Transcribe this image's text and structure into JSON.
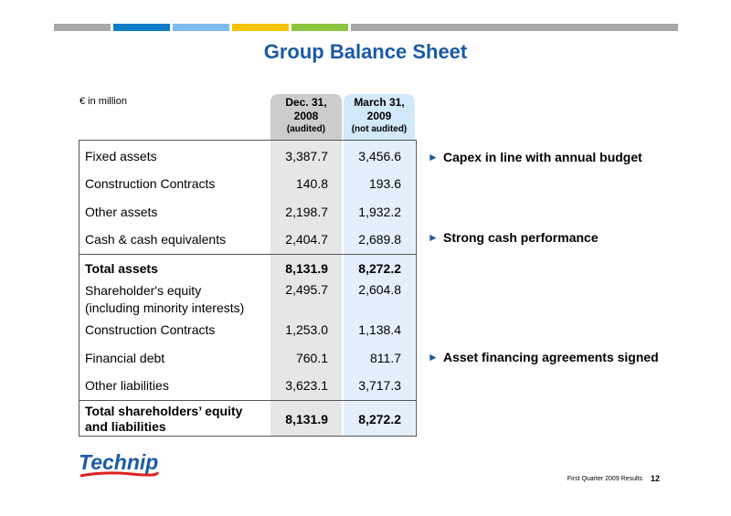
{
  "header": {
    "bar_colors": [
      "#a8a8a8",
      "#0f7bc5",
      "#7cbcee",
      "#f5c400",
      "#8cc63f",
      "#a8a8a8"
    ],
    "title": "Group Balance Sheet"
  },
  "table": {
    "unit_label": "€ in million",
    "col_dec": {
      "line1": "Dec. 31,",
      "line2": "2008",
      "note": "(audited)"
    },
    "col_mar": {
      "line1": "March 31,",
      "line2": "2009",
      "note": "(not audited)"
    },
    "rows": [
      {
        "label": "Fixed assets",
        "label2": "",
        "dec": "3,387.7",
        "mar": "3,456.6"
      },
      {
        "label": "Construction Contracts",
        "label2": "",
        "dec": "140.8",
        "mar": "193.6"
      },
      {
        "label": "Other assets",
        "label2": "",
        "dec": "2,198.7",
        "mar": "1,932.2"
      },
      {
        "label": "Cash & cash equivalents",
        "label2": "",
        "dec": "2,404.7",
        "mar": "2,689.8"
      },
      {
        "label": "Total assets",
        "label2": "",
        "dec": "8,131.9",
        "mar": "8,272.2"
      },
      {
        "label": "Shareholder's equity",
        "label2": "(including minority interests)",
        "dec": "2,495.7",
        "mar": "2,604.8"
      },
      {
        "label": "Construction Contracts",
        "label2": "",
        "dec": "1,253.0",
        "mar": "1,138.4"
      },
      {
        "label": "Financial debt",
        "label2": "",
        "dec": "760.1",
        "mar": "811.7"
      },
      {
        "label": "Other liabilities",
        "label2": "",
        "dec": "3,623.1",
        "mar": "3,717.3"
      },
      {
        "label": "Total shareholders’ equity",
        "label2": "and liabilities",
        "dec": "8,131.9",
        "mar": "8,272.2"
      }
    ]
  },
  "bullets": [
    {
      "marker": "►",
      "text": "Capex in line with annual budget"
    },
    {
      "marker": "►",
      "text": "Strong cash performance"
    },
    {
      "marker": "►",
      "text": "Asset financing agreements signed"
    }
  ],
  "footer": {
    "logo_text": "Technip",
    "footer_text": "First Quarter 2009 Results",
    "page_number": "12"
  }
}
